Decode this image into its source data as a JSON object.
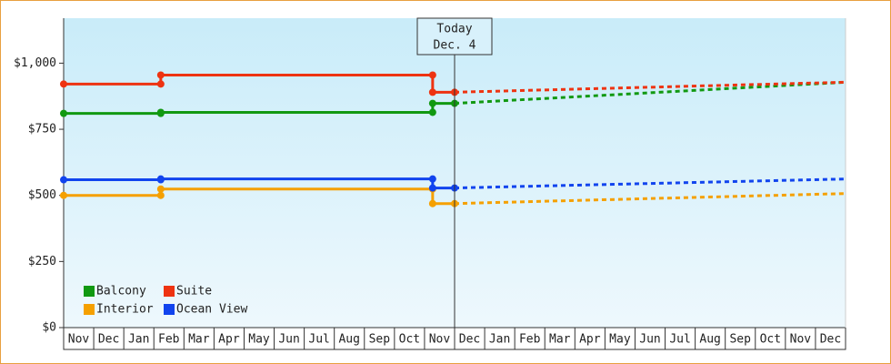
{
  "chart_data": {
    "type": "line",
    "categories": [
      "Nov",
      "Dec",
      "Jan",
      "Feb",
      "Mar",
      "Apr",
      "May",
      "Jun",
      "Jul",
      "Aug",
      "Sep",
      "Oct",
      "Nov",
      "Dec",
      "Jan",
      "Feb",
      "Mar",
      "Apr",
      "May",
      "Jun",
      "Jul",
      "Aug",
      "Sep",
      "Oct",
      "Nov",
      "Dec"
    ],
    "xlim": [
      0,
      26
    ],
    "x": [
      0,
      3.23,
      3.23,
      12.27,
      12.27,
      13
    ],
    "projection_x": [
      13,
      26
    ],
    "ylim": [
      0,
      1170
    ],
    "yticks": [
      {
        "value": 0,
        "label": "$0"
      },
      {
        "value": 250,
        "label": "$250"
      },
      {
        "value": 500,
        "label": "$500"
      },
      {
        "value": 750,
        "label": "$750"
      },
      {
        "value": 1000,
        "label": "$1,000"
      }
    ],
    "annotation": {
      "x": 13,
      "lines": [
        "Today",
        "Dec. 4"
      ]
    },
    "series": [
      {
        "name": "Balcony",
        "color": "#119911",
        "values": [
          810,
          810,
          814,
          814,
          848,
          848
        ],
        "projection": [
          848,
          928
        ]
      },
      {
        "name": "Suite",
        "color": "#ee3311",
        "values": [
          921,
          921,
          955,
          955,
          890,
          890
        ],
        "projection": [
          890,
          928
        ]
      },
      {
        "name": "Interior",
        "color": "#f5a000",
        "values": [
          500,
          500,
          524,
          524,
          469,
          469
        ],
        "projection": [
          469,
          507
        ]
      },
      {
        "name": "Ocean View",
        "color": "#1144ee",
        "values": [
          559,
          559,
          562,
          562,
          528,
          528
        ],
        "projection": [
          528,
          562
        ]
      }
    ]
  }
}
